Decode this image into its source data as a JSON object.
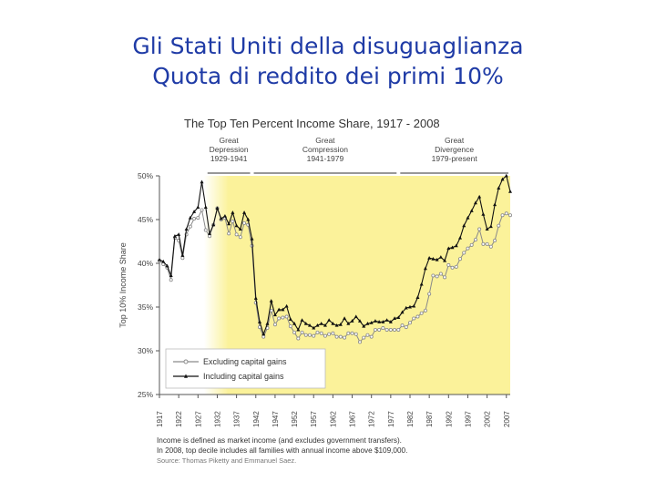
{
  "slide": {
    "title_line1": "Gli Stati Uniti della disuguaglianza",
    "title_line2": "Quota di reddito dei primi 10%"
  },
  "chart_data": {
    "type": "line",
    "title": "The Top Ten Percent Income Share, 1917 - 2008",
    "ylabel": "Top 10% Income Share",
    "xlabel": "",
    "ylim": [
      25,
      50
    ],
    "xlim": [
      1917,
      2008
    ],
    "y_ticks": [
      "25%",
      "30%",
      "35%",
      "40%",
      "45%",
      "50%"
    ],
    "y_tick_values": [
      25,
      30,
      35,
      40,
      45,
      50
    ],
    "x_ticks": [
      "1917",
      "1922",
      "1927",
      "1932",
      "1937",
      "1942",
      "1947",
      "1952",
      "1957",
      "1962",
      "1967",
      "1972",
      "1977",
      "1982",
      "1987",
      "1992",
      "1997",
      "2002",
      "2007"
    ],
    "x_tick_values": [
      1917,
      1922,
      1927,
      1932,
      1937,
      1942,
      1947,
      1952,
      1957,
      1962,
      1967,
      1972,
      1977,
      1982,
      1987,
      1992,
      1997,
      2002,
      2007
    ],
    "grid": false,
    "legend_placement": "bottom-left",
    "periods": [
      {
        "label_line1": "Great",
        "label_line2": "Depression",
        "label_line3": "1929-1941",
        "start": 1929,
        "end": 1941
      },
      {
        "label_line1": "Great",
        "label_line2": "Compression",
        "label_line3": "1941-1979",
        "start": 1941,
        "end": 1979
      },
      {
        "label_line1": "Great",
        "label_line2": "Divergence",
        "label_line3": "1979-present",
        "start": 1979,
        "end": 2008
      }
    ],
    "shaded_region": {
      "start": 1930,
      "end": 2008,
      "color": "#fbf29a"
    },
    "years": [
      1917,
      1918,
      1919,
      1920,
      1921,
      1922,
      1923,
      1924,
      1925,
      1926,
      1927,
      1928,
      1929,
      1930,
      1931,
      1932,
      1933,
      1934,
      1935,
      1936,
      1937,
      1938,
      1939,
      1940,
      1941,
      1942,
      1943,
      1944,
      1945,
      1946,
      1947,
      1948,
      1949,
      1950,
      1951,
      1952,
      1953,
      1954,
      1955,
      1956,
      1957,
      1958,
      1959,
      1960,
      1961,
      1962,
      1963,
      1964,
      1965,
      1966,
      1967,
      1968,
      1969,
      1970,
      1971,
      1972,
      1973,
      1974,
      1975,
      1976,
      1977,
      1978,
      1979,
      1980,
      1981,
      1982,
      1983,
      1984,
      1985,
      1986,
      1987,
      1988,
      1989,
      1990,
      1991,
      1992,
      1993,
      1994,
      1995,
      1996,
      1997,
      1998,
      1999,
      2000,
      2001,
      2002,
      2003,
      2004,
      2005,
      2006,
      2007,
      2008
    ],
    "series": [
      {
        "name": "Excluding capital gains",
        "marker": "circle",
        "color": "#8a8a8a",
        "values": [
          40.3,
          39.9,
          39.5,
          38.1,
          42.9,
          42.6,
          40.6,
          43.3,
          44.2,
          45.1,
          45.2,
          46.1,
          43.8,
          43.1,
          44.4,
          46.3,
          45.0,
          45.2,
          43.4,
          44.8,
          43.3,
          43.0,
          44.6,
          44.4,
          42.0,
          35.5,
          32.7,
          31.6,
          32.6,
          34.6,
          33.0,
          33.7,
          33.8,
          33.9,
          32.8,
          32.1,
          31.4,
          32.1,
          31.8,
          31.8,
          31.7,
          32.1,
          32.0,
          31.7,
          31.9,
          32.0,
          31.6,
          31.6,
          31.5,
          32.0,
          32.0,
          31.9,
          31.0,
          31.5,
          31.8,
          31.6,
          32.4,
          32.4,
          32.6,
          32.4,
          32.4,
          32.4,
          32.4,
          32.9,
          32.7,
          33.2,
          33.7,
          33.9,
          34.3,
          34.6,
          36.5,
          38.6,
          38.5,
          38.8,
          38.4,
          39.8,
          39.5,
          39.6,
          40.5,
          41.2,
          41.7,
          42.1,
          42.7,
          43.9,
          42.2,
          42.2,
          41.9,
          42.6,
          44.3,
          45.5,
          45.7,
          45.5
        ]
      },
      {
        "name": "Including capital gains",
        "marker": "triangle",
        "color": "#111111",
        "values": [
          40.4,
          40.2,
          39.7,
          38.6,
          43.1,
          43.3,
          40.9,
          43.9,
          45.2,
          45.9,
          46.4,
          49.3,
          46.4,
          43.4,
          44.4,
          46.3,
          45.1,
          45.4,
          44.5,
          45.8,
          44.3,
          43.9,
          45.8,
          45.0,
          42.8,
          36.0,
          33.3,
          31.9,
          33.1,
          35.7,
          34.1,
          34.7,
          34.7,
          35.1,
          33.6,
          33.1,
          32.4,
          33.5,
          33.1,
          32.9,
          32.6,
          32.9,
          33.1,
          32.9,
          33.5,
          33.1,
          32.9,
          33.0,
          33.7,
          33.1,
          33.4,
          33.9,
          33.4,
          32.8,
          33.1,
          33.2,
          33.4,
          33.3,
          33.3,
          33.5,
          33.3,
          33.7,
          33.8,
          34.4,
          34.9,
          35.0,
          35.1,
          36.1,
          37.6,
          39.4,
          40.6,
          40.5,
          40.4,
          40.7,
          40.3,
          41.7,
          41.8,
          42.0,
          42.9,
          44.3,
          45.2,
          46.0,
          46.9,
          47.6,
          45.6,
          43.9,
          44.2,
          46.7,
          48.6,
          49.6,
          50.0,
          48.2
        ]
      }
    ],
    "legend": [
      {
        "label": "Excluding capital gains"
      },
      {
        "label": "Including capital gains"
      }
    ],
    "footnotes": [
      "Income is defined as market income (and excludes government transfers).",
      "In 2008, top decile includes all families with annual income above $109,000.",
      "Source: Thomas Piketty and Emmanuel Saez."
    ]
  }
}
